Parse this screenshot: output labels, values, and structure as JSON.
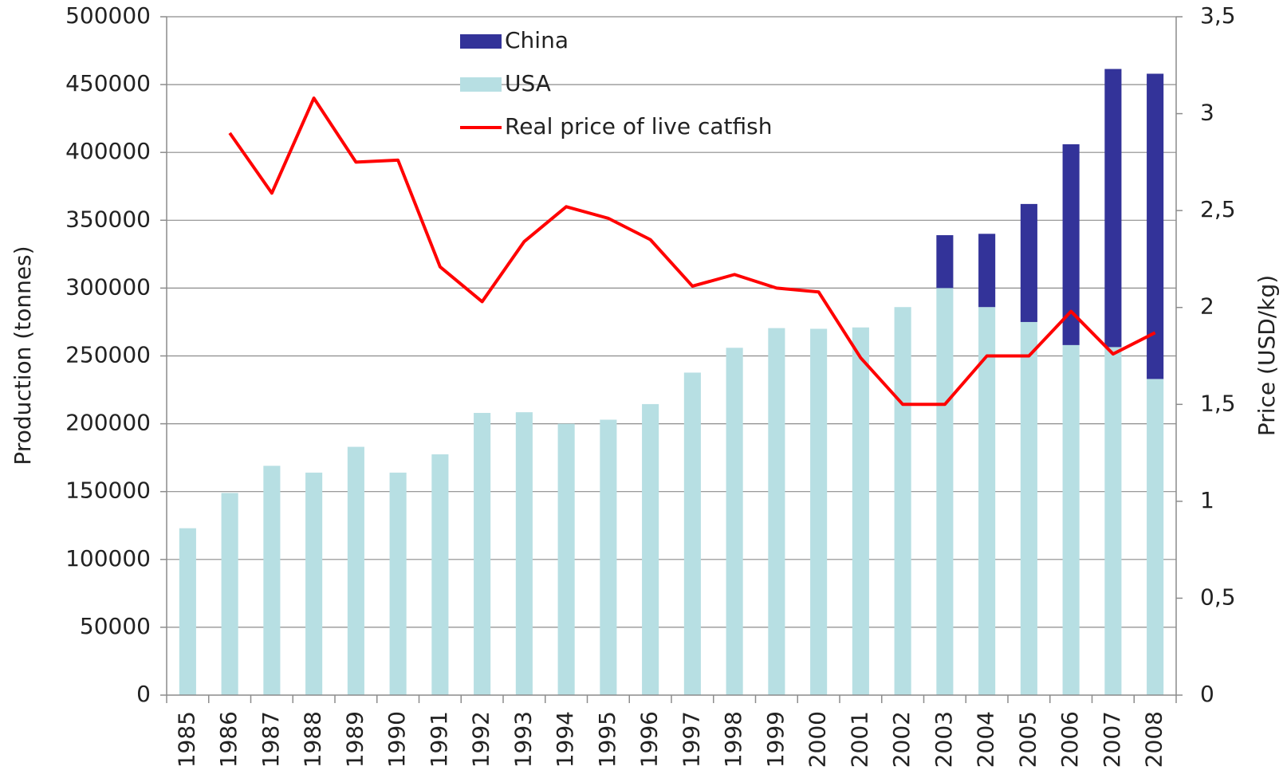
{
  "chart_data": {
    "type": "bar_line",
    "y_label": "Production (tonnes)",
    "y2_label": "Price (USD/kg)",
    "categories": [
      "1985",
      "1986",
      "1987",
      "1988",
      "1989",
      "1990",
      "1991",
      "1992",
      "1993",
      "1994",
      "1995",
      "1996",
      "1997",
      "1998",
      "1999",
      "2000",
      "2001",
      "2002",
      "2003",
      "2004",
      "2005",
      "2006",
      "2007",
      "2008"
    ],
    "series": [
      {
        "name": "China",
        "color": "#333399",
        "kind": "bar",
        "values": [
          null,
          null,
          null,
          null,
          null,
          null,
          null,
          null,
          null,
          null,
          null,
          null,
          null,
          null,
          null,
          null,
          null,
          null,
          39000,
          54000,
          87000,
          148000,
          205000,
          225000
        ]
      },
      {
        "name": "USA",
        "color": "#b7dfe3",
        "kind": "bar",
        "values": [
          123000,
          149000,
          169000,
          164000,
          183000,
          164000,
          177500,
          208000,
          208500,
          200000,
          203000,
          214500,
          237700,
          256000,
          270500,
          270000,
          271000,
          286000,
          300000,
          286000,
          275000,
          258000,
          256500,
          233000
        ]
      },
      {
        "name": "Real price of live catfish",
        "color": "#ff0000",
        "kind": "line",
        "axis": "y2",
        "values": [
          null,
          2.9,
          2.59,
          3.08,
          2.75,
          2.76,
          2.21,
          2.03,
          2.34,
          2.52,
          2.46,
          2.35,
          2.11,
          2.17,
          2.1,
          2.08,
          1.74,
          1.5,
          1.5,
          1.75,
          1.75,
          1.98,
          1.76,
          1.87
        ]
      }
    ],
    "ylim": [
      0,
      500000
    ],
    "yticks": [
      0,
      50000,
      100000,
      150000,
      200000,
      250000,
      300000,
      350000,
      400000,
      450000,
      500000
    ],
    "y2lim": [
      0,
      3.5
    ],
    "y2ticks": [
      0,
      {
        "value": 0.5,
        "label": "0,5"
      },
      1,
      {
        "value": 1.5,
        "label": "1,5"
      },
      2,
      {
        "value": 2.5,
        "label": "2,5"
      },
      3,
      {
        "value": 3.5,
        "label": "3,5"
      }
    ],
    "grid": true
  }
}
